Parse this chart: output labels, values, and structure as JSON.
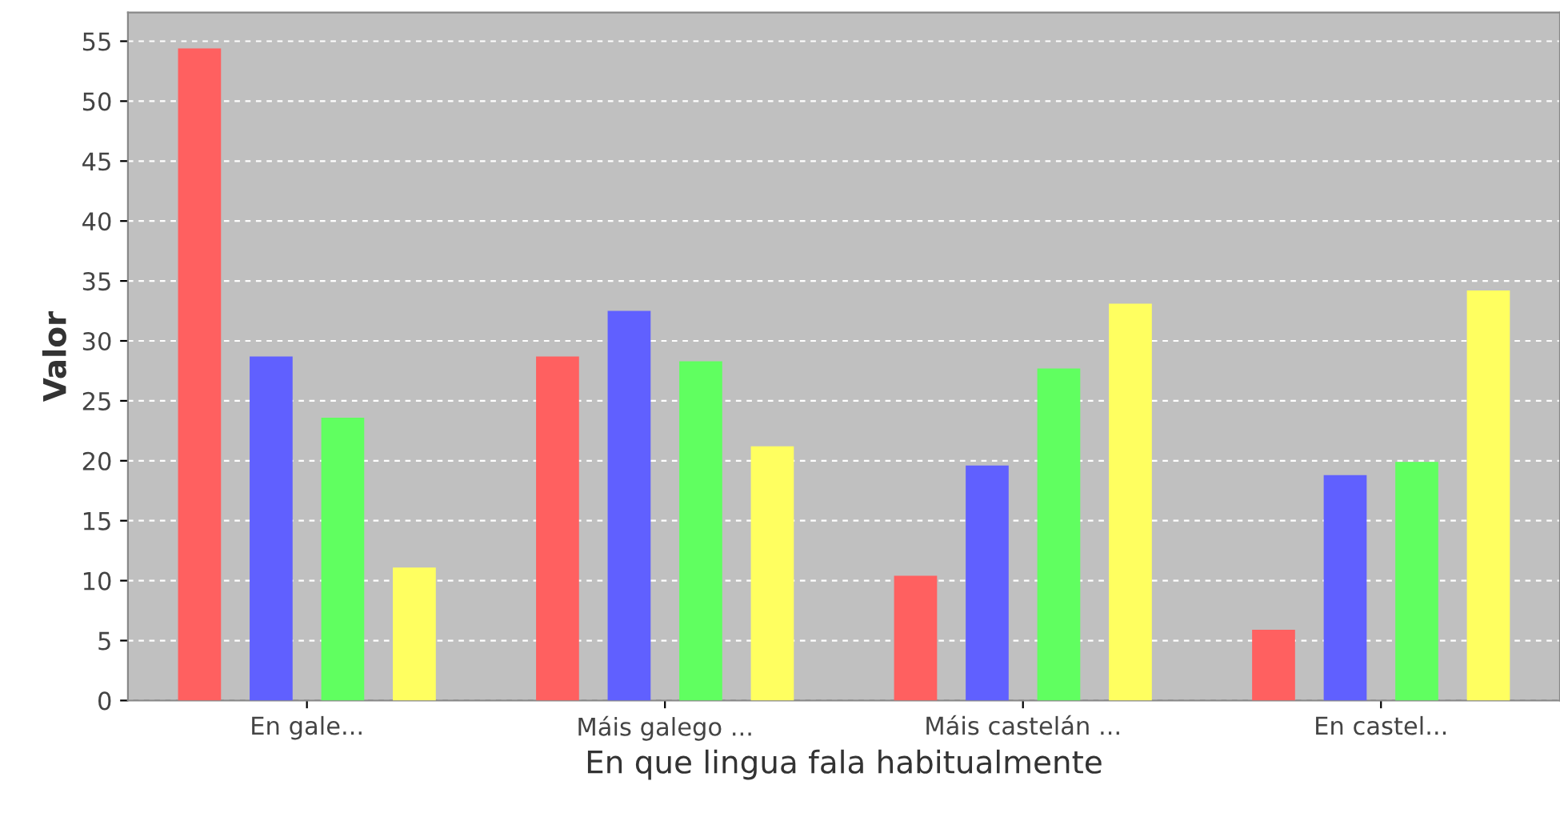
{
  "chart_data": {
    "type": "bar",
    "xlabel": "En que lingua fala habitualmente",
    "ylabel": "Valor",
    "categories": [
      "En gale...",
      "Máis galego ...",
      "Máis castelán ...",
      "En castel..."
    ],
    "series": [
      {
        "color": "#ff6060",
        "values": [
          54.4,
          28.7,
          10.4,
          5.9
        ]
      },
      {
        "color": "#6060ff",
        "values": [
          28.7,
          32.5,
          19.6,
          18.8
        ]
      },
      {
        "color": "#60ff60",
        "values": [
          23.6,
          28.3,
          27.7,
          19.9
        ]
      },
      {
        "color": "#ffff60",
        "values": [
          11.1,
          21.2,
          33.1,
          34.2
        ]
      }
    ],
    "ylim": [
      0,
      57.4
    ],
    "yticks": [
      0,
      5,
      10,
      15,
      20,
      25,
      30,
      35,
      40,
      45,
      50,
      55
    ],
    "grid": "y",
    "legend": false
  }
}
